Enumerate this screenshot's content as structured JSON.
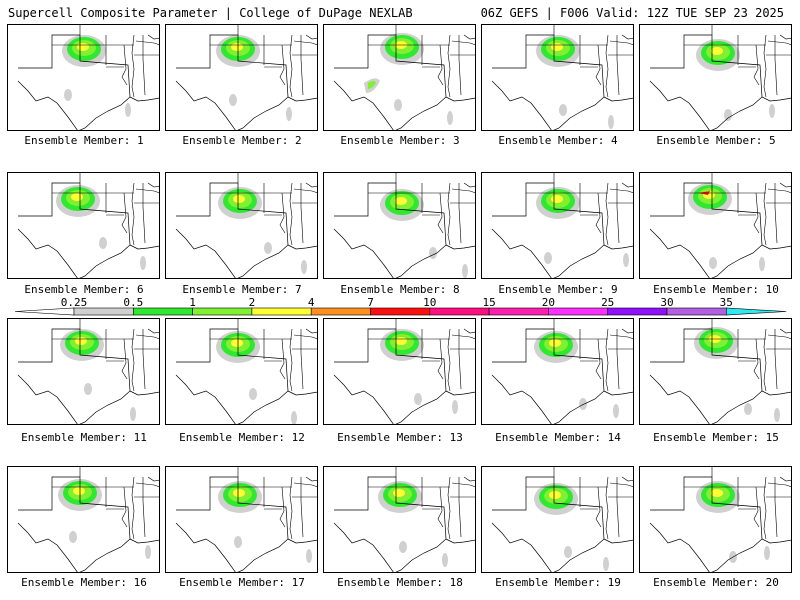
{
  "header": {
    "title_left": "Supercell Composite Parameter | College of DuPage NEXLAB",
    "title_right": "06Z GEFS | F006 Valid: 12Z TUE SEP 23 2025"
  },
  "members": [
    {
      "label": "Ensemble Member: 1"
    },
    {
      "label": "Ensemble Member: 2"
    },
    {
      "label": "Ensemble Member: 3"
    },
    {
      "label": "Ensemble Member: 4"
    },
    {
      "label": "Ensemble Member: 5"
    },
    {
      "label": "Ensemble Member: 6"
    },
    {
      "label": "Ensemble Member: 7"
    },
    {
      "label": "Ensemble Member: 8"
    },
    {
      "label": "Ensemble Member: 9"
    },
    {
      "label": "Ensemble Member: 10"
    },
    {
      "label": "Ensemble Member: 11"
    },
    {
      "label": "Ensemble Member: 12"
    },
    {
      "label": "Ensemble Member: 13"
    },
    {
      "label": "Ensemble Member: 14"
    },
    {
      "label": "Ensemble Member: 15"
    },
    {
      "label": "Ensemble Member: 16"
    },
    {
      "label": "Ensemble Member: 17"
    },
    {
      "label": "Ensemble Member: 18"
    },
    {
      "label": "Ensemble Member: 19"
    },
    {
      "label": "Ensemble Member: 20"
    }
  ],
  "colorbar": {
    "ticks": [
      "0.25",
      "0.5",
      "1",
      "2",
      "4",
      "7",
      "10",
      "15",
      "20",
      "25",
      "30",
      "35"
    ],
    "colors": [
      "#d0d0d0",
      "#2fe82f",
      "#80f030",
      "#ffff33",
      "#ff9020",
      "#ff1010",
      "#ff1080",
      "#ff20b0",
      "#ff30ff",
      "#9010ff",
      "#b060e0",
      "#30e8f0"
    ],
    "under_color": "#ffffff"
  }
}
